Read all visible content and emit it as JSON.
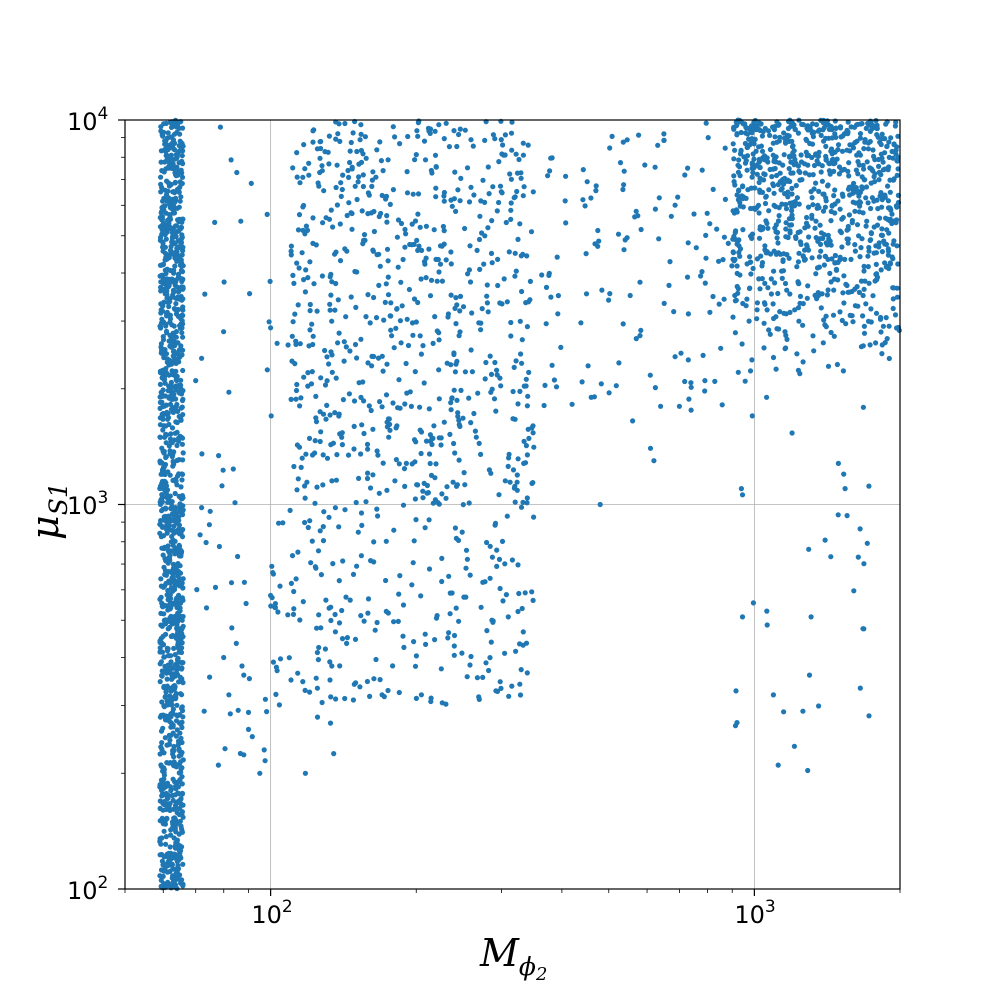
{
  "chart_data": {
    "type": "scatter",
    "xlabel": {
      "base": "M",
      "sub": "ϕ",
      "subsub": "2"
    },
    "ylabel": {
      "base": "μ",
      "sub": "S1"
    },
    "xscale": "log",
    "yscale": "log",
    "xlim": [
      50,
      2000
    ],
    "ylim": [
      100,
      10000
    ],
    "grid": true,
    "marker_color": "#1f77b4",
    "x_ticks": [
      {
        "base": "10",
        "exp": "2"
      },
      {
        "base": "10",
        "exp": "3"
      }
    ],
    "y_ticks": [
      {
        "base": "10",
        "exp": "2"
      },
      {
        "base": "10",
        "exp": "3"
      },
      {
        "base": "10",
        "exp": "4"
      }
    ],
    "x_tick_values": [
      100,
      1000
    ],
    "y_tick_values": [
      100,
      1000,
      10000
    ],
    "regions": [
      {
        "x": [
          59,
          66
        ],
        "y": [
          100,
          10000
        ],
        "n": 1300,
        "ylog": true
      },
      {
        "x": [
          110,
          350
        ],
        "y": [
          1000,
          10000
        ],
        "n": 700,
        "ylog": true
      },
      {
        "x": [
          100,
          350
        ],
        "y": [
          300,
          1000
        ],
        "n": 230,
        "ylog": true
      },
      {
        "x": [
          360,
          900
        ],
        "y": [
          1800,
          10000
        ],
        "n": 130,
        "ylog": true
      },
      {
        "x": [
          900,
          2000
        ],
        "y": [
          2000,
          10000
        ],
        "n": 900,
        "ylog": false
      },
      {
        "x": [
          70,
          120
        ],
        "y": [
          200,
          10000
        ],
        "n": 60,
        "ylog": true
      },
      {
        "x": [
          900,
          1800
        ],
        "y": [
          200,
          2000
        ],
        "n": 25,
        "ylog": true
      }
    ],
    "points": [
      [
        72,
        2400
      ],
      [
        75,
        960
      ],
      [
        78,
        210
      ],
      [
        80,
        400
      ],
      [
        82,
        320
      ],
      [
        88,
        360
      ],
      [
        90,
        260
      ],
      [
        95,
        200
      ],
      [
        97,
        230
      ],
      [
        100,
        580
      ],
      [
        102,
        540
      ],
      [
        118,
        200
      ],
      [
        125,
        280
      ],
      [
        133,
        270
      ],
      [
        135,
        225
      ],
      [
        170,
        320
      ],
      [
        205,
        320
      ],
      [
        310,
        510
      ],
      [
        235,
        520
      ],
      [
        280,
        470
      ],
      [
        945,
        510
      ],
      [
        1120,
        210
      ],
      [
        1210,
        235
      ],
      [
        1260,
        290
      ],
      [
        1300,
        360
      ],
      [
        1310,
        510
      ],
      [
        1490,
        940
      ],
      [
        1540,
        1100
      ],
      [
        1640,
        730
      ],
      [
        1060,
        1900
      ],
      [
        990,
        1700
      ],
      [
        1680,
        1790
      ],
      [
        1530,
        1200
      ],
      [
        940,
        1100
      ],
      [
        945,
        1060
      ],
      [
        480,
        1000
      ],
      [
        560,
        1650
      ],
      [
        640,
        1800
      ],
      [
        700,
        1800
      ],
      [
        740,
        1760
      ],
      [
        790,
        2100
      ],
      [
        460,
        1900
      ],
      [
        620,
        1300
      ],
      [
        610,
        1400
      ]
    ]
  }
}
